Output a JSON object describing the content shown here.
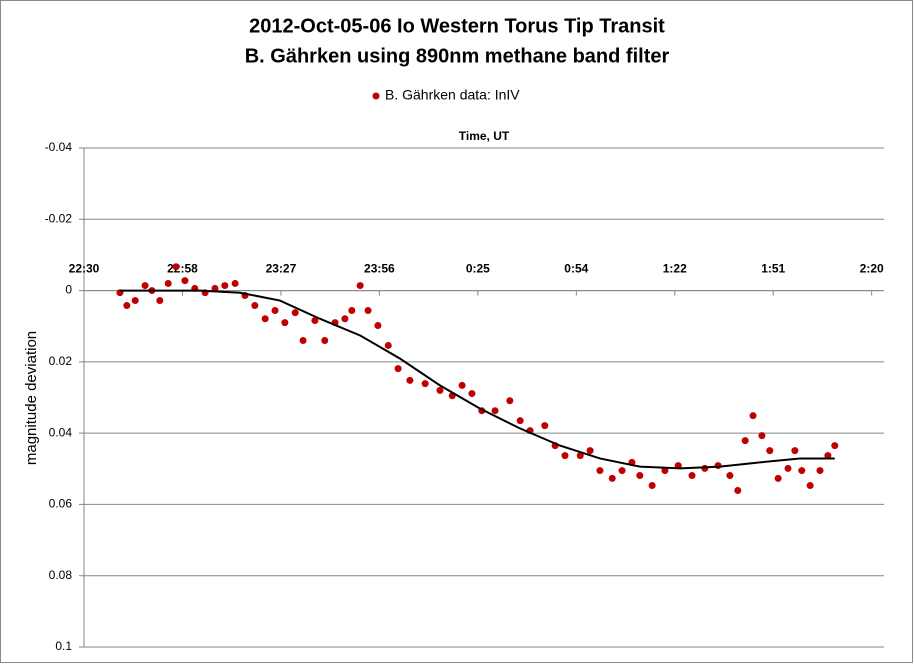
{
  "chart_data": {
    "type": "scatter",
    "title": [
      "2012-Oct-05-06 Io Western Torus Tip Transit",
      "B. Gährken using 890nm methane band filter"
    ],
    "xlabel": "Time, UT",
    "ylabel": "magnitude deviation",
    "xlim": [
      0.9375,
      1.1
    ],
    "xticks": [
      {
        "value": 0.9375,
        "label": "22:30"
      },
      {
        "value": 0.9575,
        "label": "22:58"
      },
      {
        "value": 0.9775,
        "label": "23:27"
      },
      {
        "value": 0.9975,
        "label": "23:56"
      },
      {
        "value": 1.0175,
        "label": "0:25"
      },
      {
        "value": 1.0375,
        "label": "0:54"
      },
      {
        "value": 1.0575,
        "label": "1:22"
      },
      {
        "value": 1.0775,
        "label": "1:51"
      },
      {
        "value": 1.0975,
        "label": "2:20"
      }
    ],
    "ylim": [
      -0.04,
      0.1
    ],
    "yticks": [
      -0.04,
      -0.02,
      0,
      0.02,
      0.04,
      0.06,
      0.08,
      0.1
    ],
    "y_reversed": true,
    "x_axis_crosses": 0,
    "grid": true,
    "legend": "top",
    "series": [
      {
        "name": "B. Gährken data:  InIV",
        "color": "#c00000",
        "type": "scatter",
        "x": [
          0.9448,
          0.9462,
          0.9479,
          0.9499,
          0.9513,
          0.9529,
          0.9546,
          0.9562,
          0.958,
          0.96,
          0.9621,
          0.9641,
          0.9661,
          0.9682,
          0.9702,
          0.9722,
          0.9743,
          0.9763,
          0.9783,
          0.9804,
          0.982,
          0.9844,
          0.9864,
          0.9885,
          0.9905,
          0.9919,
          0.9936,
          0.9952,
          0.9972,
          0.9993,
          1.0013,
          1.0037,
          1.0068,
          1.0098,
          1.0123,
          1.0143,
          1.0163,
          1.0183,
          1.021,
          1.024,
          1.0261,
          1.0281,
          1.0311,
          1.0332,
          1.0352,
          1.0383,
          1.0403,
          1.0423,
          1.0448,
          1.0468,
          1.0488,
          1.0504,
          1.0529,
          1.0555,
          1.0582,
          1.061,
          1.0636,
          1.0663,
          1.0687,
          1.0703,
          1.0718,
          1.0734,
          1.0752,
          1.0768,
          1.0785,
          1.0805,
          1.0819,
          1.0833,
          1.085,
          1.087,
          1.0886,
          1.09
        ],
        "values": [
          0.0006,
          0.0042,
          0.0028,
          -0.0014,
          0,
          0.0028,
          -0.002,
          -0.0067,
          -0.0028,
          -0.0006,
          0.0006,
          -0.0006,
          -0.0014,
          -0.002,
          0.0014,
          0.0042,
          0.0079,
          0.0056,
          0.009,
          0.0062,
          0.014,
          0.0084,
          0.014,
          0.009,
          0.0079,
          0.0056,
          -0.0014,
          0.0056,
          0.0098,
          0.0154,
          0.0219,
          0.0252,
          0.0261,
          0.028,
          0.0295,
          0.0266,
          0.0289,
          0.0337,
          0.0337,
          0.0309,
          0.0365,
          0.0393,
          0.0379,
          0.0435,
          0.0463,
          0.0463,
          0.0449,
          0.0505,
          0.0527,
          0.0505,
          0.0482,
          0.0519,
          0.0547,
          0.0505,
          0.0491,
          0.0519,
          0.0499,
          0.0491,
          0.0519,
          0.0561,
          0.0421,
          0.0351,
          0.0407,
          0.0449,
          0.0527,
          0.0499,
          0.0449,
          0.0505,
          0.0547,
          0.0505,
          0.0463,
          0.0435
        ]
      },
      {
        "color": "#000000",
        "type": "line",
        "x": [
          0.9448,
          0.9611,
          0.9692,
          0.9773,
          0.9854,
          0.9936,
          1.0017,
          1.0098,
          1.0179,
          1.0261,
          1.0342,
          1.0423,
          1.0504,
          1.0586,
          1.0667,
          1.0748,
          1.0829,
          1.09
        ],
        "values": [
          0,
          0,
          0.0006,
          0.0028,
          0.0079,
          0.0126,
          0.0191,
          0.0266,
          0.0331,
          0.0387,
          0.0435,
          0.0471,
          0.0494,
          0.0499,
          0.0494,
          0.0482,
          0.0471,
          0.0471
        ]
      }
    ]
  }
}
